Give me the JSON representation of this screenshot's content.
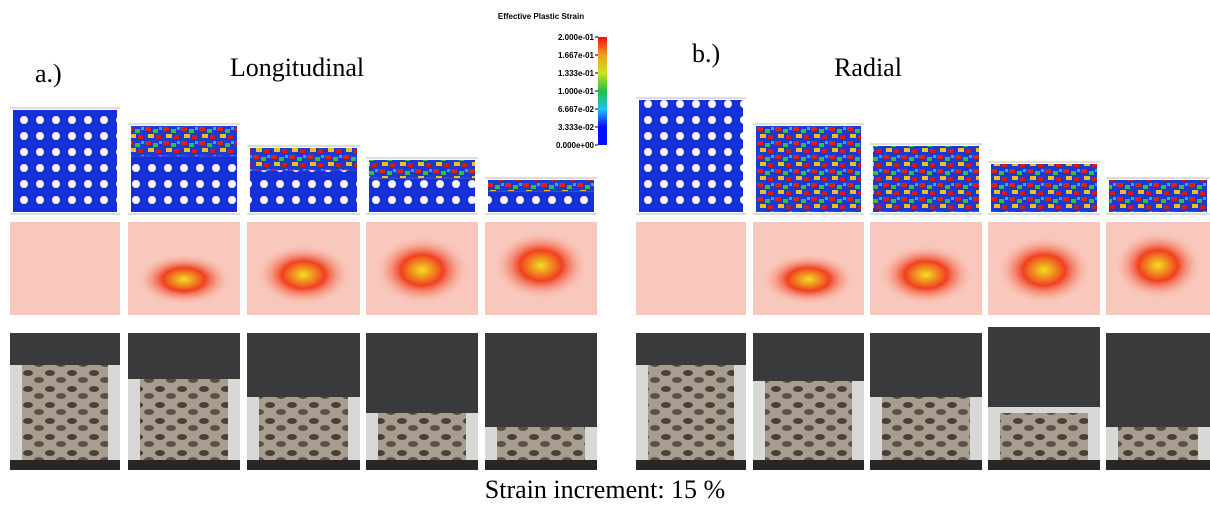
{
  "panel_a": {
    "label": "a.)",
    "title": "Longitudinal"
  },
  "panel_b": {
    "label": "b.)",
    "title": "Radial"
  },
  "legend": {
    "title": "Effective Plastic Strain",
    "labels": [
      "2.000e-01",
      "1.667e-01",
      "1.333e-01",
      "1.000e-01",
      "6.667e-02",
      "3.333e-02",
      "0.000e+00"
    ]
  },
  "caption": "Strain increment: 15 %"
}
